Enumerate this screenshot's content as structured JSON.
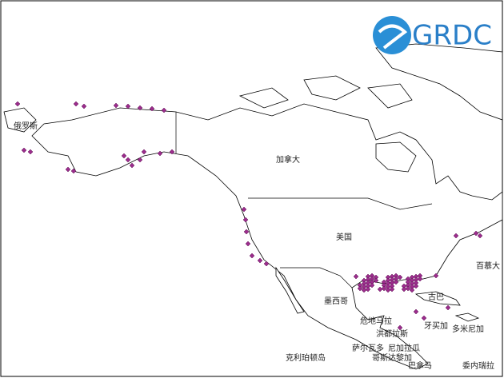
{
  "logo": {
    "text": "GRDC"
  },
  "labels": [
    "俄罗斯",
    "加拿大",
    "美国",
    "墨西哥",
    "百慕大",
    "古巴",
    "牙买加",
    "危地马拉",
    "洪都拉斯",
    "萨尔瓦多",
    "尼加拉瓜",
    "多米尼加",
    "哥斯达黎加",
    "巴拿马",
    "委内瑞拉",
    "克利珀顿岛"
  ]
}
